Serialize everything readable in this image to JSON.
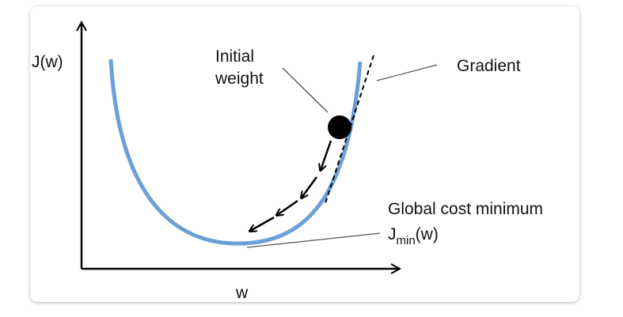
{
  "labels": {
    "y_axis": "J(w)",
    "x_axis": "w"
  },
  "annotations": {
    "initial_weight": [
      "Initial",
      "weight"
    ],
    "gradient": "Gradient",
    "minimum": {
      "title": "Global cost minimum",
      "symbol": "J",
      "subscript": "min",
      "argument": "(w)"
    }
  }
}
